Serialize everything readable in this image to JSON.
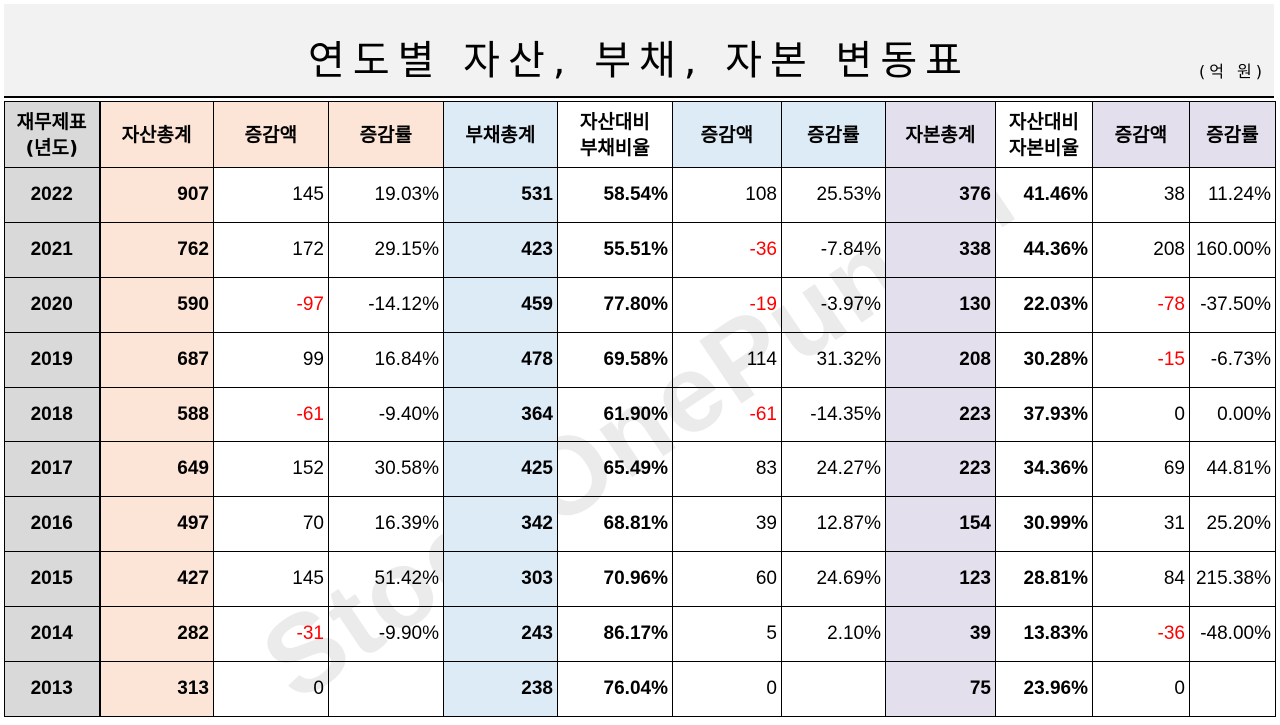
{
  "title": "연도별 자산, 부채, 자본 변동표",
  "unit": "(억 원)",
  "watermark": "StockOnePunch",
  "headers": {
    "year": "재무제표\n(년도)",
    "asset_total": "자산총계",
    "asset_change": "증감액",
    "asset_rate": "증감률",
    "liab_total": "부채총계",
    "liab_ratio": "자산대비\n부채비율",
    "liab_change": "증감액",
    "liab_rate": "증감률",
    "cap_total": "자본총계",
    "cap_ratio": "자산대비\n자본비율",
    "cap_change": "증감액",
    "cap_rate": "증감률"
  },
  "rows": [
    {
      "year": "2022",
      "asset": "907",
      "a_chg": "145",
      "a_rate": "19.03%",
      "liab": "531",
      "l_ratio": "58.54%",
      "l_chg": "108",
      "l_rate": "25.53%",
      "cap": "376",
      "c_ratio": "41.46%",
      "c_chg": "38",
      "c_rate": "11.24%"
    },
    {
      "year": "2021",
      "asset": "762",
      "a_chg": "172",
      "a_rate": "29.15%",
      "liab": "423",
      "l_ratio": "55.51%",
      "l_chg": "-36",
      "l_rate": "-7.84%",
      "cap": "338",
      "c_ratio": "44.36%",
      "c_chg": "208",
      "c_rate": "160.00%"
    },
    {
      "year": "2020",
      "asset": "590",
      "a_chg": "-97",
      "a_rate": "-14.12%",
      "liab": "459",
      "l_ratio": "77.80%",
      "l_chg": "-19",
      "l_rate": "-3.97%",
      "cap": "130",
      "c_ratio": "22.03%",
      "c_chg": "-78",
      "c_rate": "-37.50%"
    },
    {
      "year": "2019",
      "asset": "687",
      "a_chg": "99",
      "a_rate": "16.84%",
      "liab": "478",
      "l_ratio": "69.58%",
      "l_chg": "114",
      "l_rate": "31.32%",
      "cap": "208",
      "c_ratio": "30.28%",
      "c_chg": "-15",
      "c_rate": "-6.73%"
    },
    {
      "year": "2018",
      "asset": "588",
      "a_chg": "-61",
      "a_rate": "-9.40%",
      "liab": "364",
      "l_ratio": "61.90%",
      "l_chg": "-61",
      "l_rate": "-14.35%",
      "cap": "223",
      "c_ratio": "37.93%",
      "c_chg": "0",
      "c_rate": "0.00%"
    },
    {
      "year": "2017",
      "asset": "649",
      "a_chg": "152",
      "a_rate": "30.58%",
      "liab": "425",
      "l_ratio": "65.49%",
      "l_chg": "83",
      "l_rate": "24.27%",
      "cap": "223",
      "c_ratio": "34.36%",
      "c_chg": "69",
      "c_rate": "44.81%"
    },
    {
      "year": "2016",
      "asset": "497",
      "a_chg": "70",
      "a_rate": "16.39%",
      "liab": "342",
      "l_ratio": "68.81%",
      "l_chg": "39",
      "l_rate": "12.87%",
      "cap": "154",
      "c_ratio": "30.99%",
      "c_chg": "31",
      "c_rate": "25.20%"
    },
    {
      "year": "2015",
      "asset": "427",
      "a_chg": "145",
      "a_rate": "51.42%",
      "liab": "303",
      "l_ratio": "70.96%",
      "l_chg": "60",
      "l_rate": "24.69%",
      "cap": "123",
      "c_ratio": "28.81%",
      "c_chg": "84",
      "c_rate": "215.38%"
    },
    {
      "year": "2014",
      "asset": "282",
      "a_chg": "-31",
      "a_rate": "-9.90%",
      "liab": "243",
      "l_ratio": "86.17%",
      "l_chg": "5",
      "l_rate": "2.10%",
      "cap": "39",
      "c_ratio": "13.83%",
      "c_chg": "-36",
      "c_rate": "-48.00%"
    },
    {
      "year": "2013",
      "asset": "313",
      "a_chg": "0",
      "a_rate": "",
      "liab": "238",
      "l_ratio": "76.04%",
      "l_chg": "0",
      "l_rate": "",
      "cap": "75",
      "c_ratio": "23.96%",
      "c_chg": "0",
      "c_rate": ""
    }
  ],
  "colors": {
    "year_bg": "#d9d9d9",
    "asset_bg": "#fce4d6",
    "liab_bg": "#ddebf7",
    "cap_bg": "#e4dfec",
    "negative": "#ff0000"
  }
}
